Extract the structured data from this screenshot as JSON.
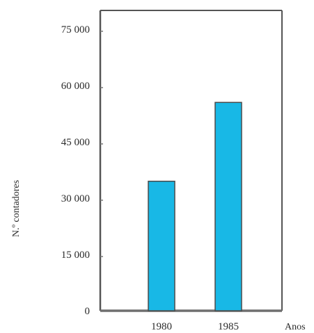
{
  "chart_data": {
    "type": "bar",
    "categories": [
      "1980",
      "1985"
    ],
    "values": [
      34500,
      55500
    ],
    "title": "",
    "xlabel": "Anos",
    "ylabel": "N.º contadores",
    "ylim": [
      0,
      80000
    ],
    "yticks": [
      0,
      15000,
      30000,
      45000,
      60000,
      75000
    ],
    "ytick_labels": [
      "0",
      "15 000",
      "30 000",
      "45 000",
      "60 000",
      "75 000"
    ],
    "grid": false,
    "legend": "none",
    "bar_color": "#18b8e6",
    "bar_edge_color": "#4a4a4a",
    "axis_color": "#555555"
  }
}
